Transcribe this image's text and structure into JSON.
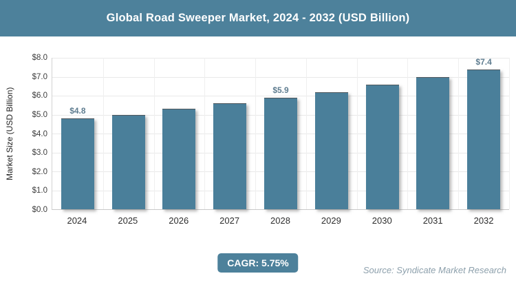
{
  "header": {
    "title": "Global Road Sweeper Market, 2024 - 2032 (USD Billion)"
  },
  "chart_data": {
    "type": "bar",
    "title": "Global Road Sweeper Market, 2024 - 2032 (USD Billion)",
    "categories": [
      "2024",
      "2025",
      "2026",
      "2027",
      "2028",
      "2029",
      "2030",
      "2031",
      "2032"
    ],
    "values": [
      4.8,
      5.0,
      5.3,
      5.6,
      5.9,
      6.2,
      6.6,
      7.0,
      7.4
    ],
    "bar_labels": [
      "$4.8",
      "",
      "",
      "",
      "$5.9",
      "",
      "",
      "",
      "$7.4"
    ],
    "xlabel": "",
    "ylabel": "Market Size (USD Billion)",
    "ylim": [
      0,
      8
    ],
    "ytick_labels": [
      "$0.0",
      "$1.0",
      "$2.0",
      "$3.0",
      "$4.0",
      "$5.0",
      "$6.0",
      "$7.0",
      "$8.0"
    ],
    "grid": true,
    "legend": "none",
    "bar_color": "#4A7F9A",
    "bar_label_color": "#5F7D90"
  },
  "footer": {
    "cagr_label": "CAGR: 5.75%",
    "source": "Source: Syndicate Market Research"
  },
  "colors": {
    "accent": "#4D819B",
    "grid": "#E9E9E9",
    "axis": "#C8C8C8"
  }
}
